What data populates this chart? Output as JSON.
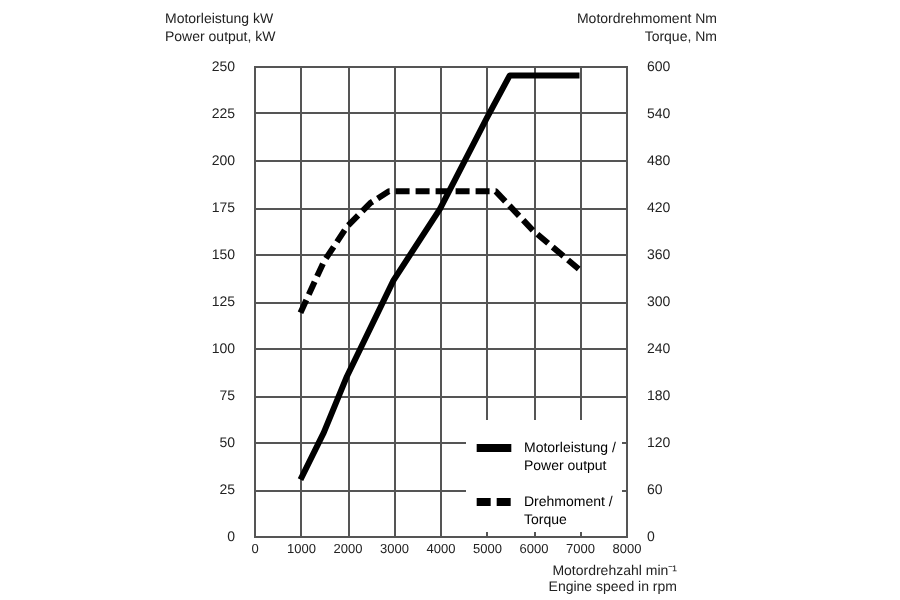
{
  "chart_data": {
    "type": "line",
    "xlabel": "Motordrehzahl min⁻¹\nEngine speed in rpm",
    "ylabel": "Motorleistung kW\nPower output, kW",
    "y2label": "Motordrehmoment Nm\nTorque, Nm",
    "xlim": [
      0,
      8000
    ],
    "xticks": [
      0,
      1000,
      2000,
      3000,
      4000,
      5000,
      6000,
      7000,
      8000
    ],
    "ylim": [
      0,
      250
    ],
    "yticks": [
      0,
      25,
      50,
      75,
      100,
      125,
      150,
      175,
      200,
      225,
      250
    ],
    "y2lim": [
      0,
      600
    ],
    "y2ticks": [
      0,
      60,
      120,
      180,
      240,
      300,
      360,
      420,
      480,
      540,
      600
    ],
    "grid": true,
    "legend": "bottom right",
    "marker": "none",
    "series": [
      {
        "name": "Motorleistung /\nPower output",
        "color": "#000000",
        "line_style": "solid",
        "x": [
          1000,
          1500,
          2000,
          3000,
          4000,
          5000,
          5500,
          7000
        ],
        "values": [
          30,
          55,
          85,
          136,
          174,
          222,
          245,
          245
        ]
      },
      {
        "name": "Drehmoment /\nTorque",
        "color": "#000000",
        "line_style": "dashed",
        "axis": "y2",
        "x": [
          1000,
          1500,
          2000,
          2500,
          2900,
          5200,
          6000,
          7000
        ],
        "values": [
          285,
          350,
          395,
          425,
          440,
          440,
          390,
          340
        ]
      }
    ]
  }
}
